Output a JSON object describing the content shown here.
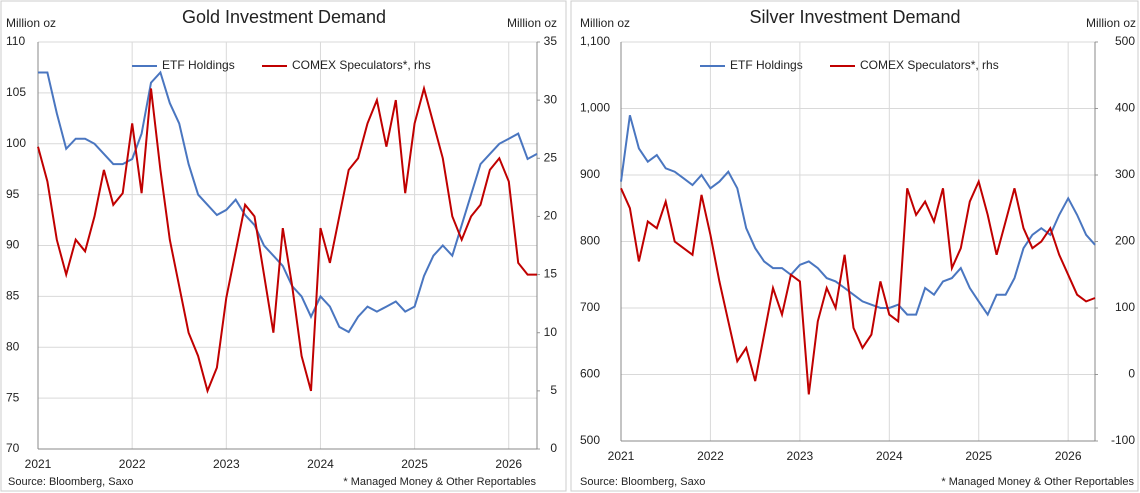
{
  "chart_data": [
    {
      "type": "line",
      "title": "Gold Investment Demand",
      "y_label": "Million oz",
      "y2_label": "Million oz",
      "source": "Source: Bloomberg, Saxo",
      "footnote": "* Managed Money & Other Reportables",
      "x": [
        2021.0,
        2021.1,
        2021.2,
        2021.3,
        2021.4,
        2021.5,
        2021.6,
        2021.7,
        2021.8,
        2021.9,
        2022.0,
        2022.1,
        2022.2,
        2022.3,
        2022.4,
        2022.5,
        2022.6,
        2022.7,
        2022.8,
        2022.9,
        2023.0,
        2023.1,
        2023.2,
        2023.3,
        2023.4,
        2023.5,
        2023.6,
        2023.7,
        2023.8,
        2023.9,
        2024.0,
        2024.1,
        2024.2,
        2024.3,
        2024.4,
        2024.5,
        2024.6,
        2024.7,
        2024.8,
        2024.9,
        2025.0,
        2025.1,
        2025.2,
        2025.3,
        2025.4,
        2025.5,
        2025.6,
        2025.7,
        2025.8,
        2025.9,
        2026.0,
        2026.1,
        2026.2,
        2026.3
      ],
      "series": [
        {
          "name": "ETF Holdings",
          "color": "#4a76c0",
          "values": [
            107,
            107,
            103,
            99.5,
            100.5,
            100.5,
            100,
            99,
            98,
            98,
            98.5,
            101,
            106,
            107,
            104,
            102,
            98,
            95,
            94,
            93,
            93.5,
            94.5,
            93,
            92,
            90,
            89,
            88,
            86,
            85,
            83,
            85,
            84,
            82,
            81.5,
            83,
            84,
            83.5,
            84,
            84.5,
            83.5,
            84,
            87,
            89,
            90,
            89,
            92,
            95,
            98,
            99,
            100,
            100.5,
            101,
            98.5,
            99
          ]
        },
        {
          "name": "COMEX Speculators*, rhs",
          "color": "#c00000",
          "axis": "y2",
          "values": [
            26,
            23,
            18,
            15,
            18,
            17,
            20,
            24,
            21,
            22,
            28,
            22,
            31,
            24,
            18,
            14,
            10,
            8,
            5,
            7,
            13,
            17,
            21,
            20,
            15,
            10,
            19,
            14,
            8,
            5,
            19,
            16,
            20,
            24,
            25,
            28,
            30,
            26,
            30,
            22,
            28,
            31,
            28,
            25,
            20,
            18,
            20,
            21,
            24,
            25,
            23,
            16,
            15,
            15
          ]
        }
      ],
      "xlim": [
        2021,
        2026.3
      ],
      "xticks": [
        2021,
        2022,
        2023,
        2024,
        2025,
        2026
      ],
      "ylim": [
        70,
        110
      ],
      "yticks": [
        70,
        75,
        80,
        85,
        90,
        95,
        100,
        105,
        110
      ],
      "y2lim": [
        0,
        35
      ],
      "y2ticks": [
        0,
        5,
        10,
        15,
        20,
        25,
        30,
        35
      ],
      "grid": true
    },
    {
      "type": "line",
      "title": "Silver Investment Demand",
      "y_label": "Million oz",
      "y2_label": "Million oz",
      "source": "Source: Bloomberg, Saxo",
      "footnote": "* Managed Money & Other Reportables",
      "x": [
        2021.0,
        2021.1,
        2021.2,
        2021.3,
        2021.4,
        2021.5,
        2021.6,
        2021.7,
        2021.8,
        2021.9,
        2022.0,
        2022.1,
        2022.2,
        2022.3,
        2022.4,
        2022.5,
        2022.6,
        2022.7,
        2022.8,
        2022.9,
        2023.0,
        2023.1,
        2023.2,
        2023.3,
        2023.4,
        2023.5,
        2023.6,
        2023.7,
        2023.8,
        2023.9,
        2024.0,
        2024.1,
        2024.2,
        2024.3,
        2024.4,
        2024.5,
        2024.6,
        2024.7,
        2024.8,
        2024.9,
        2025.0,
        2025.1,
        2025.2,
        2025.3,
        2025.4,
        2025.5,
        2025.6,
        2025.7,
        2025.8,
        2025.9,
        2026.0,
        2026.1,
        2026.2,
        2026.3
      ],
      "series": [
        {
          "name": "ETF Holdings",
          "color": "#4a76c0",
          "values": [
            890,
            990,
            940,
            920,
            930,
            910,
            905,
            895,
            885,
            900,
            880,
            890,
            905,
            880,
            820,
            790,
            770,
            760,
            760,
            750,
            765,
            770,
            760,
            745,
            740,
            730,
            720,
            710,
            705,
            700,
            700,
            705,
            690,
            690,
            730,
            720,
            740,
            745,
            760,
            730,
            710,
            690,
            720,
            720,
            745,
            790,
            810,
            820,
            810,
            840,
            865,
            840,
            810,
            795
          ]
        },
        {
          "name": "COMEX Speculators*, rhs",
          "color": "#c00000",
          "axis": "y2",
          "values": [
            280,
            250,
            170,
            230,
            220,
            260,
            200,
            190,
            180,
            270,
            210,
            140,
            80,
            20,
            40,
            -10,
            60,
            130,
            90,
            150,
            140,
            -30,
            80,
            130,
            100,
            180,
            70,
            40,
            60,
            140,
            90,
            80,
            280,
            240,
            260,
            230,
            280,
            160,
            190,
            260,
            290,
            240,
            180,
            230,
            280,
            220,
            190,
            200,
            220,
            180,
            150,
            120,
            110,
            115
          ]
        }
      ],
      "xlim": [
        2021,
        2026.3
      ],
      "xticks": [
        2021,
        2022,
        2023,
        2024,
        2025,
        2026
      ],
      "ylim": [
        500,
        1100
      ],
      "yticks": [
        500,
        600,
        700,
        800,
        900,
        {
          "value": 1000,
          "label": "1,000"
        },
        {
          "value": 1100,
          "label": "1,100"
        }
      ],
      "y2lim": [
        -100,
        500
      ],
      "y2ticks": [
        -100,
        0,
        100,
        200,
        300,
        400,
        500
      ],
      "grid": true
    }
  ]
}
